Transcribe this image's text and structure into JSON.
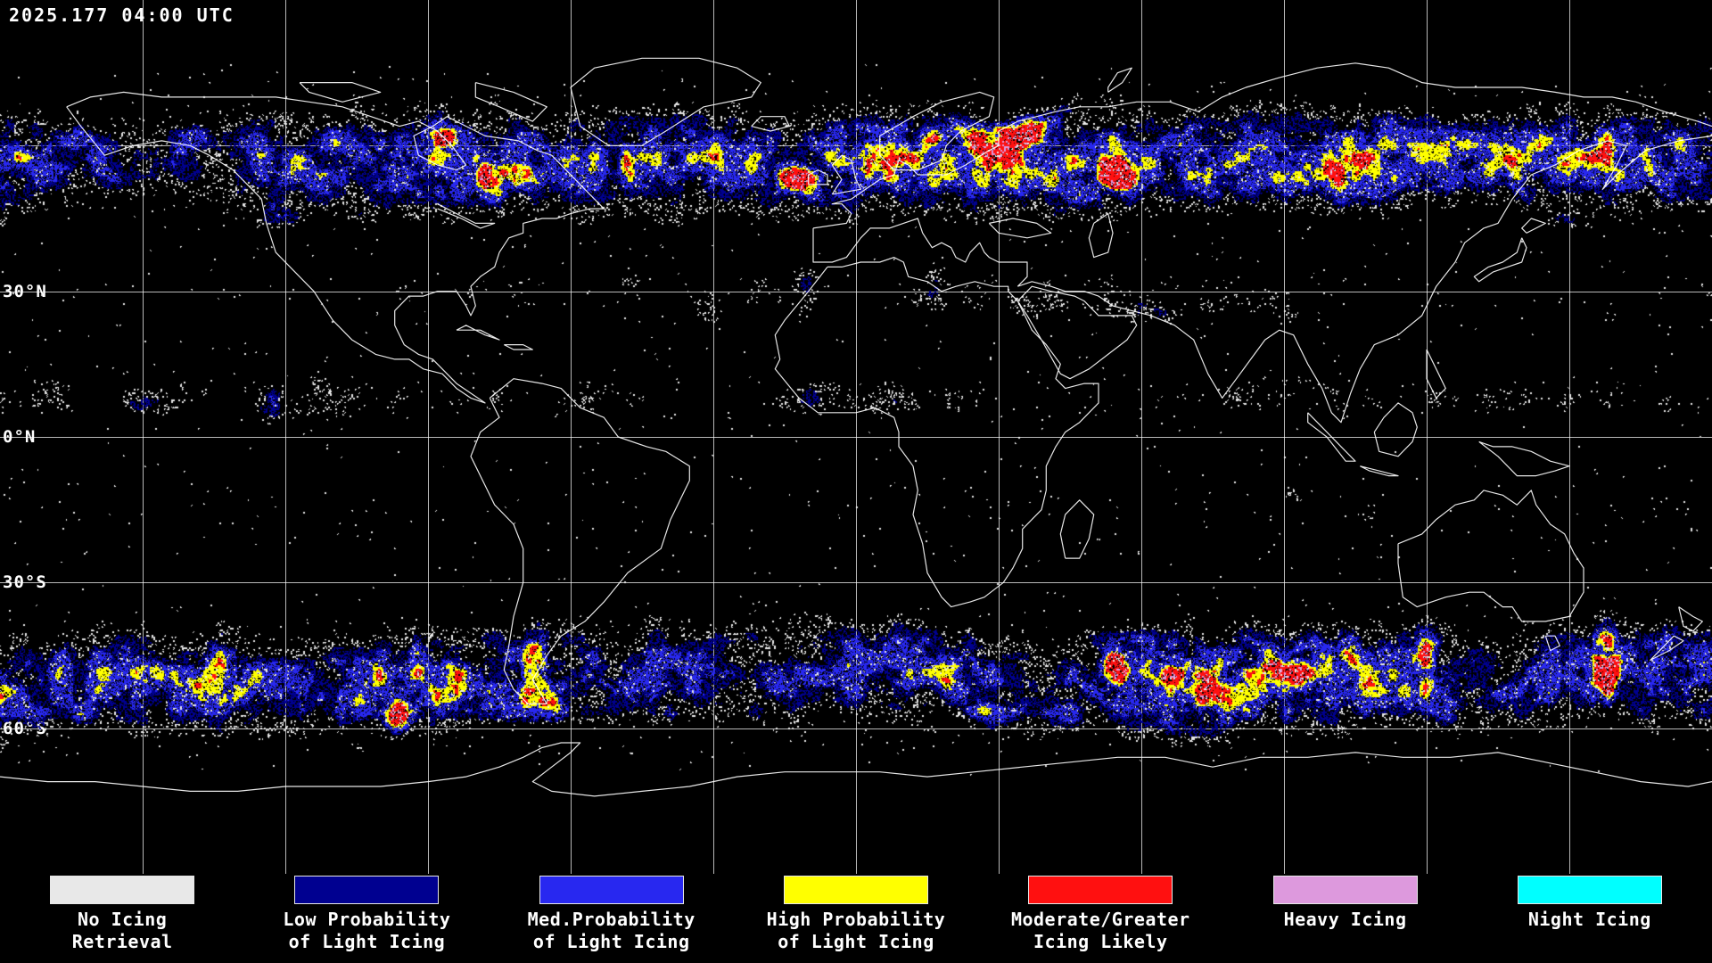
{
  "header": {
    "timestamp": "2025.177 04:00 UTC"
  },
  "map": {
    "latitude_labels": [
      {
        "text": "30°N",
        "lat": 30
      },
      {
        "text": "0°N",
        "lat": 0
      },
      {
        "text": "30°S",
        "lat": -30
      },
      {
        "text": "60°S",
        "lat": -60
      }
    ],
    "background_color": "#000000",
    "coastline_color": "#ffffff",
    "gridline_color": "#cccccc"
  },
  "legend": {
    "items": [
      {
        "id": "no-icing-retrieval",
        "label_line1": "No Icing",
        "label_line2": "Retrieval",
        "color": "#e8e8e8"
      },
      {
        "id": "low-probability",
        "label_line1": "Low Probability",
        "label_line2": "of Light Icing",
        "color": "#000090"
      },
      {
        "id": "med-probability",
        "label_line1": "Med.Probability",
        "label_line2": "of Light Icing",
        "color": "#2828f0"
      },
      {
        "id": "high-probability",
        "label_line1": "High Probability",
        "label_line2": "of Light Icing",
        "color": "#ffff00"
      },
      {
        "id": "moderate-greater",
        "label_line1": "Moderate/Greater",
        "label_line2": "Icing Likely",
        "color": "#ff1010"
      },
      {
        "id": "heavy-icing",
        "label_line1": "Heavy Icing",
        "label_line2": "",
        "color": "#dd99dd"
      },
      {
        "id": "night-icing",
        "label_line1": "Night Icing",
        "label_line2": "",
        "color": "#00ffff"
      }
    ]
  }
}
